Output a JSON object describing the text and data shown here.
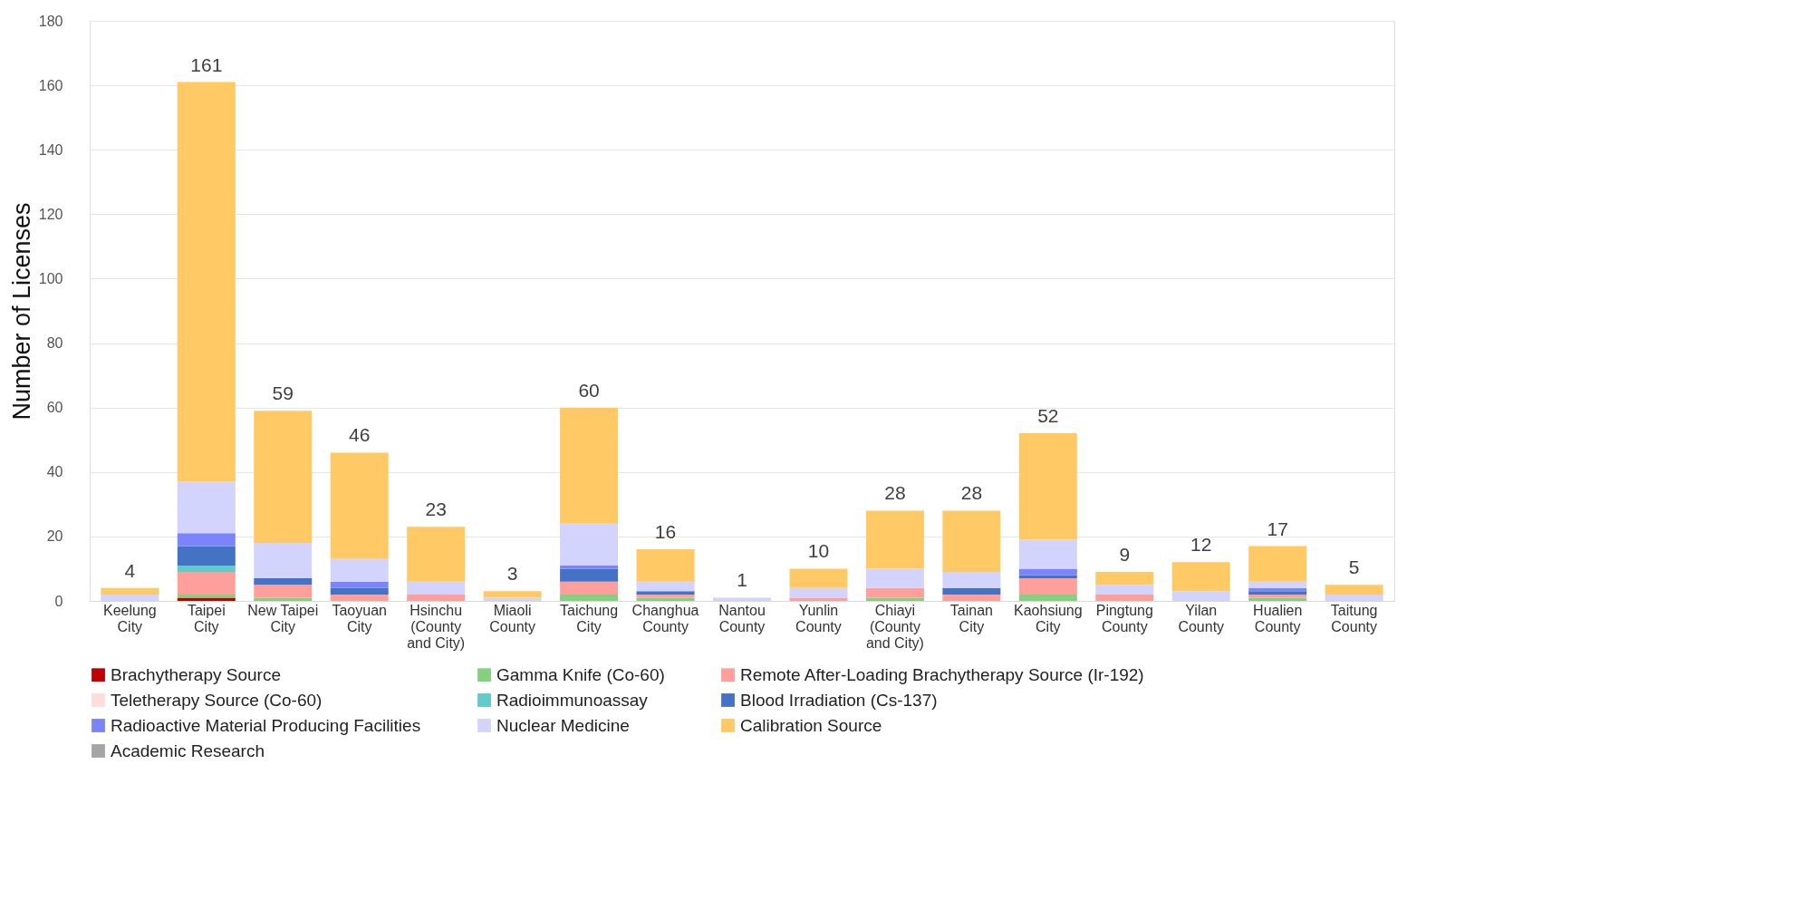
{
  "chart_data": {
    "type": "bar",
    "stacked": true,
    "ylabel": "Number of Licenses",
    "categories": [
      "Keelung City",
      "Taipei City",
      "New Taipei City",
      "Taoyuan City",
      "Hsinchu (County and City)",
      "Miaoli County",
      "Taichung City",
      "Changhua County",
      "Nantou County",
      "Yunlin County",
      "Chiayi (County and City)",
      "Tainan City",
      "Kaohsiung City",
      "Pingtung County",
      "Yilan County",
      "Hualien County",
      "Taitung County"
    ],
    "series": [
      {
        "name": "Brachytherapy Source",
        "color": "#c00000",
        "values": [
          0,
          1,
          0,
          0,
          0,
          0,
          0,
          0,
          0,
          0,
          0,
          0,
          0,
          0,
          0,
          0,
          0
        ]
      },
      {
        "name": "Gamma Knife (Co-60)",
        "color": "#83d17f",
        "values": [
          0,
          1,
          1,
          0,
          0,
          0,
          2,
          1,
          0,
          0,
          1,
          0,
          2,
          0,
          0,
          1,
          0
        ]
      },
      {
        "name": "Remote After-Loading Brachytherapy Source (Ir-192)",
        "color": "#ff9f9b",
        "values": [
          0,
          7,
          4,
          2,
          2,
          0,
          4,
          1,
          0,
          1,
          3,
          2,
          5,
          2,
          0,
          1,
          0
        ]
      },
      {
        "name": "Teletherapy Source (Co-60)",
        "color": "#ffdcdc",
        "values": [
          0,
          0,
          0,
          0,
          0,
          0,
          0,
          0,
          0,
          0,
          0,
          0,
          0,
          0,
          0,
          0,
          0
        ]
      },
      {
        "name": "Radioimmunoassay",
        "color": "#5fcbcb",
        "values": [
          0,
          2,
          0,
          0,
          0,
          0,
          0,
          0,
          0,
          0,
          0,
          0,
          0,
          0,
          0,
          0,
          0
        ]
      },
      {
        "name": "Blood Irradiation (Cs-137)",
        "color": "#4472c4",
        "values": [
          0,
          6,
          2,
          2,
          0,
          0,
          4,
          1,
          0,
          0,
          0,
          2,
          1,
          0,
          0,
          1,
          0
        ]
      },
      {
        "name": "Radioactive Material Producing Facilities",
        "color": "#7b84fb",
        "values": [
          0,
          4,
          0,
          2,
          0,
          0,
          1,
          0,
          0,
          0,
          0,
          0,
          2,
          0,
          0,
          1,
          0
        ]
      },
      {
        "name": "Nuclear Medicine",
        "color": "#d2d4fd",
        "values": [
          2,
          16,
          11,
          7,
          4,
          1,
          13,
          3,
          1,
          3,
          6,
          5,
          9,
          3,
          3,
          2,
          2
        ]
      },
      {
        "name": "Calibration  Source",
        "color": "#ffc966",
        "values": [
          2,
          124,
          41,
          33,
          17,
          2,
          36,
          10,
          0,
          6,
          18,
          19,
          33,
          4,
          9,
          11,
          3
        ]
      },
      {
        "name": "Academic Research",
        "color": "#a5a5a5",
        "values": [
          0,
          0,
          0,
          0,
          0,
          0,
          0,
          0,
          0,
          0,
          0,
          0,
          0,
          0,
          0,
          0,
          0
        ]
      }
    ],
    "totals": [
      "4",
      "161",
      "59",
      "46",
      "23",
      "3",
      "60",
      "16",
      "1",
      "10",
      "28",
      "28",
      "52",
      "9",
      "12",
      "17",
      "5"
    ],
    "ylim": [
      0,
      180
    ],
    "yticks": [
      0,
      20,
      40,
      60,
      80,
      100,
      120,
      140,
      160,
      180
    ],
    "grid": "y",
    "legend": "bottom"
  }
}
